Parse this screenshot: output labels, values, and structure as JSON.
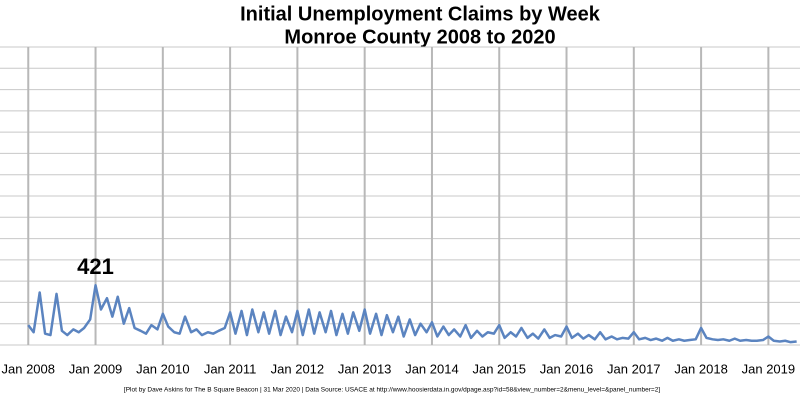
{
  "chart_data": {
    "type": "line",
    "title": "Initial Unemployment Claims by Week",
    "subtitle": "Monroe County 2008 to 2020",
    "footnote": "[Plot by Dave Askins for The B Square Beacon | 31 Mar 2020 | Data Source: USACE at http://www.hoosierdata.in.gov/dpage.asp?id=58&view_number=2&menu_level=&panel_number=2]",
    "annotation": "421",
    "color": "#5b84c0",
    "grid": true,
    "xlim": [
      2007.58,
      2019.47
    ],
    "ylim": [
      0,
      2100
    ],
    "yticks": [
      0,
      150,
      300,
      450,
      600,
      750,
      900,
      1050,
      1200,
      1350,
      1500,
      1650,
      1800,
      1950,
      2100
    ],
    "xticks": [
      {
        "value": 2008,
        "label": "Jan 2008"
      },
      {
        "value": 2009,
        "label": "Jan 2009"
      },
      {
        "value": 2010,
        "label": "Jan 2010"
      },
      {
        "value": 2011,
        "label": "Jan 2011"
      },
      {
        "value": 2012,
        "label": "Jan 2012"
      },
      {
        "value": 2013,
        "label": "Jan 2013"
      },
      {
        "value": 2014,
        "label": "Jan 2014"
      },
      {
        "value": 2015,
        "label": "Jan 2015"
      },
      {
        "value": 2016,
        "label": "Jan 2016"
      },
      {
        "value": 2017,
        "label": "Jan 2017"
      },
      {
        "value": 2018,
        "label": "Jan 2018"
      },
      {
        "value": 2019,
        "label": "Jan 2019"
      }
    ],
    "x": [
      2008.0,
      2008.08,
      2008.17,
      2008.25,
      2008.33,
      2008.42,
      2008.5,
      2008.58,
      2008.67,
      2008.75,
      2008.83,
      2008.92,
      2009.0,
      2009.08,
      2009.17,
      2009.25,
      2009.33,
      2009.42,
      2009.5,
      2009.58,
      2009.67,
      2009.75,
      2009.83,
      2009.92,
      2010.0,
      2010.08,
      2010.17,
      2010.25,
      2010.33,
      2010.42,
      2010.5,
      2010.58,
      2010.67,
      2010.75,
      2010.83,
      2010.92,
      2011.0,
      2011.08,
      2011.17,
      2011.25,
      2011.33,
      2011.42,
      2011.5,
      2011.58,
      2011.67,
      2011.75,
      2011.83,
      2011.92,
      2012.0,
      2012.08,
      2012.17,
      2012.25,
      2012.33,
      2012.42,
      2012.5,
      2012.58,
      2012.67,
      2012.75,
      2012.83,
      2012.92,
      2013.0,
      2013.08,
      2013.17,
      2013.25,
      2013.33,
      2013.42,
      2013.5,
      2013.58,
      2013.67,
      2013.75,
      2013.83,
      2013.92,
      2014.0,
      2014.08,
      2014.17,
      2014.25,
      2014.33,
      2014.42,
      2014.5,
      2014.58,
      2014.67,
      2014.75,
      2014.83,
      2014.92,
      2015.0,
      2015.08,
      2015.17,
      2015.25,
      2015.33,
      2015.42,
      2015.5,
      2015.58,
      2015.67,
      2015.75,
      2015.83,
      2015.92,
      2016.0,
      2016.08,
      2016.17,
      2016.25,
      2016.33,
      2016.42,
      2016.5,
      2016.58,
      2016.67,
      2016.75,
      2016.83,
      2016.92,
      2017.0,
      2017.08,
      2017.17,
      2017.25,
      2017.33,
      2017.42,
      2017.5,
      2017.58,
      2017.67,
      2017.75,
      2017.83,
      2017.92,
      2018.0,
      2018.08,
      2018.17,
      2018.25,
      2018.33,
      2018.42,
      2018.5,
      2018.58,
      2018.67,
      2018.75,
      2018.83,
      2018.92,
      2019.0,
      2019.08,
      2019.17,
      2019.25,
      2019.33,
      2019.42
    ],
    "values": [
      140,
      90,
      370,
      80,
      70,
      360,
      100,
      70,
      110,
      90,
      120,
      180,
      421,
      250,
      330,
      200,
      340,
      150,
      260,
      120,
      100,
      80,
      140,
      110,
      220,
      130,
      90,
      80,
      200,
      90,
      110,
      70,
      90,
      80,
      100,
      120,
      230,
      80,
      240,
      70,
      250,
      90,
      230,
      80,
      240,
      70,
      200,
      90,
      240,
      70,
      250,
      80,
      230,
      90,
      240,
      70,
      220,
      80,
      230,
      100,
      250,
      80,
      220,
      70,
      210,
      90,
      200,
      60,
      180,
      70,
      150,
      90,
      160,
      60,
      130,
      70,
      110,
      60,
      140,
      50,
      100,
      60,
      90,
      80,
      140,
      50,
      90,
      60,
      120,
      50,
      80,
      45,
      110,
      50,
      70,
      60,
      130,
      50,
      80,
      45,
      70,
      40,
      90,
      40,
      60,
      40,
      50,
      45,
      90,
      40,
      50,
      35,
      45,
      30,
      50,
      30,
      40,
      30,
      35,
      40,
      120,
      50,
      40,
      35,
      40,
      30,
      45,
      30,
      35,
      30,
      30,
      35,
      60,
      30,
      25,
      30,
      20,
      25
    ]
  }
}
